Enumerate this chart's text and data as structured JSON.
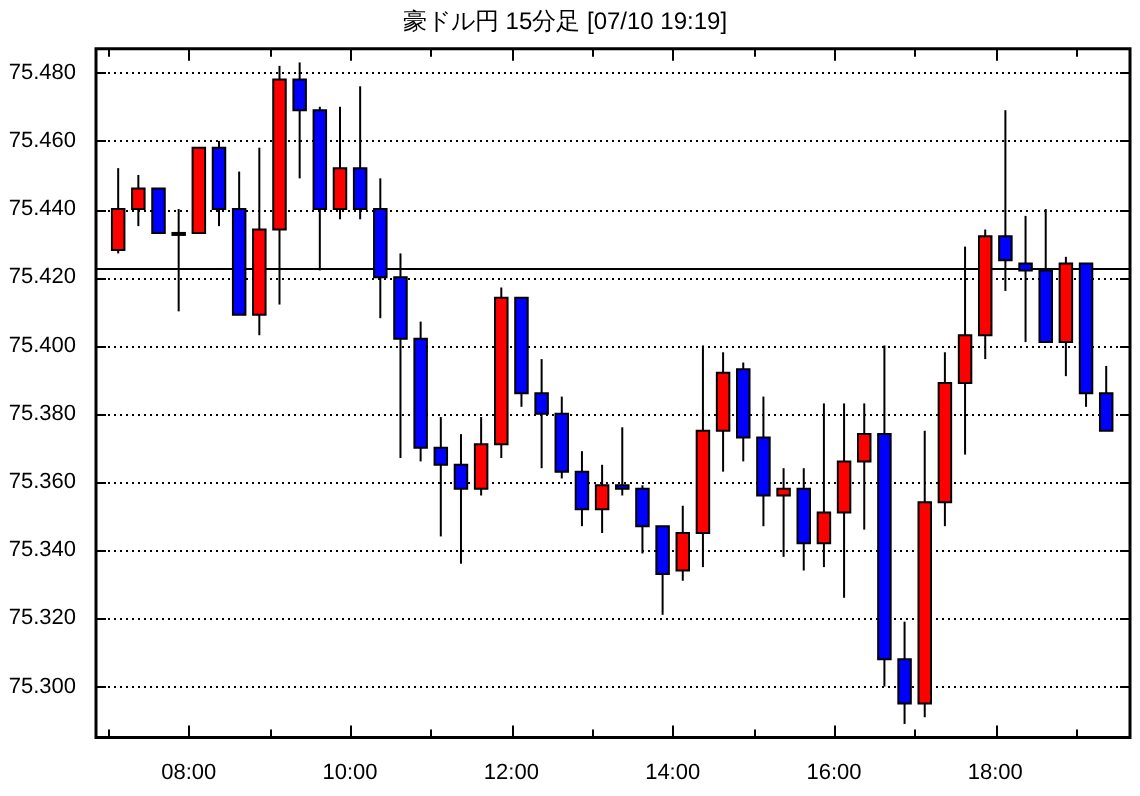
{
  "chart_data": {
    "type": "candlestick",
    "title": "豪ドル円 15分足 [07/10 19:19]",
    "x": [
      7.125,
      7.375,
      7.625,
      7.875,
      8.125,
      8.375,
      8.625,
      8.875,
      9.125,
      9.375,
      9.625,
      9.875,
      10.125,
      10.375,
      10.625,
      10.875,
      11.125,
      11.375,
      11.625,
      11.875,
      12.125,
      12.375,
      12.625,
      12.875,
      13.125,
      13.375,
      13.625,
      13.875,
      14.125,
      14.375,
      14.625,
      14.875,
      15.125,
      15.375,
      15.625,
      15.875,
      16.125,
      16.375,
      16.625,
      16.875,
      17.125,
      17.375,
      17.625,
      17.875,
      18.125,
      18.375,
      18.625,
      18.875,
      19.125,
      19.375
    ],
    "ohlc": [
      [
        75.428,
        75.452,
        75.427,
        75.44
      ],
      [
        75.44,
        75.45,
        75.435,
        75.446
      ],
      [
        75.446,
        75.446,
        75.433,
        75.433
      ],
      [
        75.433,
        75.44,
        75.41,
        75.433
      ],
      [
        75.433,
        75.458,
        75.433,
        75.458
      ],
      [
        75.458,
        75.46,
        75.435,
        75.44
      ],
      [
        75.44,
        75.451,
        75.409,
        75.409
      ],
      [
        75.409,
        75.458,
        75.403,
        75.434
      ],
      [
        75.434,
        75.482,
        75.412,
        75.478
      ],
      [
        75.478,
        75.483,
        75.449,
        75.469
      ],
      [
        75.469,
        75.47,
        75.422,
        75.44
      ],
      [
        75.44,
        75.47,
        75.437,
        75.452
      ],
      [
        75.452,
        75.476,
        75.437,
        75.44
      ],
      [
        75.44,
        75.449,
        75.408,
        75.42
      ],
      [
        75.42,
        75.427,
        75.367,
        75.402
      ],
      [
        75.402,
        75.407,
        75.366,
        75.37
      ],
      [
        75.37,
        75.379,
        75.344,
        75.365
      ],
      [
        75.365,
        75.374,
        75.336,
        75.358
      ],
      [
        75.358,
        75.379,
        75.356,
        75.371
      ],
      [
        75.371,
        75.417,
        75.367,
        75.414
      ],
      [
        75.414,
        75.414,
        75.382,
        75.386
      ],
      [
        75.386,
        75.396,
        75.364,
        75.38
      ],
      [
        75.38,
        75.385,
        75.361,
        75.363
      ],
      [
        75.363,
        75.369,
        75.347,
        75.352
      ],
      [
        75.352,
        75.365,
        75.345,
        75.359
      ],
      [
        75.359,
        75.376,
        75.356,
        75.358
      ],
      [
        75.358,
        75.359,
        75.339,
        75.347
      ],
      [
        75.347,
        75.347,
        75.321,
        75.333
      ],
      [
        75.334,
        75.353,
        75.331,
        75.345
      ],
      [
        75.345,
        75.4,
        75.335,
        75.375
      ],
      [
        75.375,
        75.398,
        75.363,
        75.392
      ],
      [
        75.393,
        75.395,
        75.366,
        75.373
      ],
      [
        75.373,
        75.385,
        75.347,
        75.356
      ],
      [
        75.356,
        75.364,
        75.338,
        75.358
      ],
      [
        75.358,
        75.364,
        75.334,
        75.342
      ],
      [
        75.342,
        75.383,
        75.335,
        75.351
      ],
      [
        75.351,
        75.383,
        75.326,
        75.366
      ],
      [
        75.366,
        75.383,
        75.346,
        75.374
      ],
      [
        75.374,
        75.4,
        75.3,
        75.308
      ],
      [
        75.308,
        75.319,
        75.289,
        75.295
      ],
      [
        75.295,
        75.375,
        75.291,
        75.354
      ],
      [
        75.354,
        75.398,
        75.347,
        75.389
      ],
      [
        75.389,
        75.429,
        75.368,
        75.403
      ],
      [
        75.403,
        75.434,
        75.396,
        75.432
      ],
      [
        75.432,
        75.469,
        75.416,
        75.425
      ],
      [
        75.424,
        75.438,
        75.401,
        75.422
      ],
      [
        75.422,
        75.44,
        75.401,
        75.401
      ],
      [
        75.401,
        75.426,
        75.391,
        75.424
      ],
      [
        75.424,
        75.424,
        75.382,
        75.386
      ],
      [
        75.386,
        75.394,
        75.375,
        75.375
      ]
    ],
    "colors": [
      "#ff0000",
      "#ff0000",
      "#0000ff",
      "#0000ff",
      "#ff0000",
      "#0000ff",
      "#0000ff",
      "#ff0000",
      "#ff0000",
      "#0000ff",
      "#0000ff",
      "#ff0000",
      "#0000ff",
      "#0000ff",
      "#0000ff",
      "#0000ff",
      "#0000ff",
      "#0000ff",
      "#ff0000",
      "#ff0000",
      "#0000ff",
      "#0000ff",
      "#0000ff",
      "#0000ff",
      "#ff0000",
      "#0000ff",
      "#0000ff",
      "#0000ff",
      "#ff0000",
      "#ff0000",
      "#ff0000",
      "#0000ff",
      "#0000ff",
      "#ff0000",
      "#0000ff",
      "#ff0000",
      "#ff0000",
      "#ff0000",
      "#0000ff",
      "#0000ff",
      "#ff0000",
      "#ff0000",
      "#ff0000",
      "#ff0000",
      "#0000ff",
      "#0000ff",
      "#0000ff",
      "#ff0000",
      "#0000ff",
      "#0000ff"
    ],
    "xlim": [
      6.85,
      19.67
    ],
    "xticks": [
      {
        "value": 7,
        "label": null
      },
      {
        "value": 8,
        "label": "08:00"
      },
      {
        "value": 9,
        "label": null
      },
      {
        "value": 10,
        "label": "10:00"
      },
      {
        "value": 11,
        "label": null
      },
      {
        "value": 12,
        "label": "12:00"
      },
      {
        "value": 13,
        "label": null
      },
      {
        "value": 14,
        "label": "14:00"
      },
      {
        "value": 15,
        "label": null
      },
      {
        "value": 16,
        "label": "16:00"
      },
      {
        "value": 17,
        "label": null
      },
      {
        "value": 18,
        "label": "18:00"
      },
      {
        "value": 19,
        "label": null
      }
    ],
    "ylim": [
      75.285,
      75.487
    ],
    "yticks": [
      {
        "value": 75.3,
        "label": "75.300"
      },
      {
        "value": 75.32,
        "label": "75.320"
      },
      {
        "value": 75.34,
        "label": "75.340"
      },
      {
        "value": 75.36,
        "label": "75.360"
      },
      {
        "value": 75.38,
        "label": "75.380"
      },
      {
        "value": 75.4,
        "label": "75.400"
      },
      {
        "value": 75.42,
        "label": "75.420"
      },
      {
        "value": 75.44,
        "label": "75.440"
      },
      {
        "value": 75.46,
        "label": "75.460"
      },
      {
        "value": 75.48,
        "label": "75.480"
      }
    ],
    "grid": "y",
    "ref_lines": [
      {
        "axis": "y",
        "value": 75.423,
        "color": "#000000"
      }
    ]
  }
}
